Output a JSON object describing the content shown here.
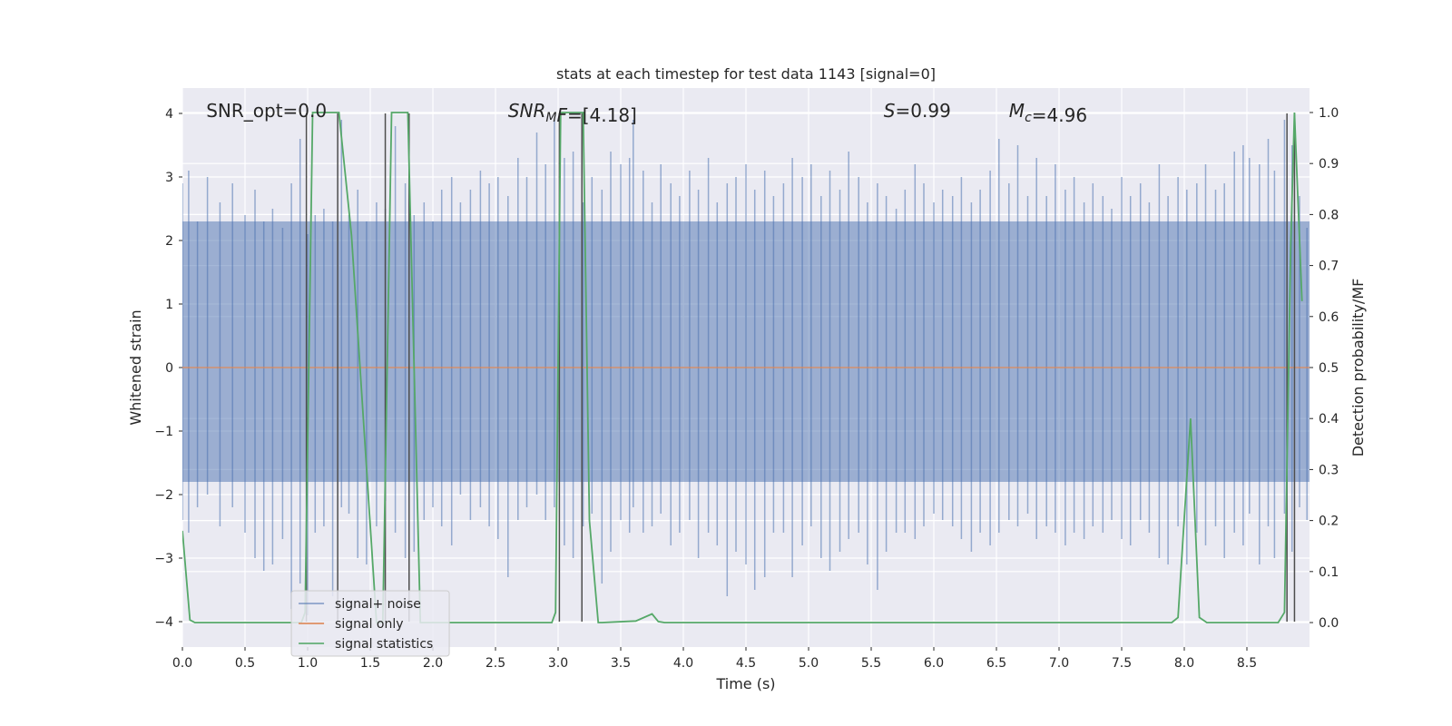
{
  "chart_data": {
    "type": "line",
    "title": "stats at each timestep for test data 1143 [signal=0]",
    "xlabel": "Time (s)",
    "ylabel": "Whitened strain",
    "y2label": "Detection probability/MF",
    "xlim": [
      0,
      9
    ],
    "ylim": [
      -4.4,
      4.4
    ],
    "y2lim": [
      -0.048,
      1.048
    ],
    "x_ticks": [
      0.0,
      0.5,
      1.0,
      1.5,
      2.0,
      2.5,
      3.0,
      3.5,
      4.0,
      4.5,
      5.0,
      5.5,
      6.0,
      6.5,
      7.0,
      7.5,
      8.0,
      8.5
    ],
    "x_tick_labels": [
      "0.0",
      "0.5",
      "1.0",
      "1.5",
      "2.0",
      "2.5",
      "3.0",
      "3.5",
      "4.0",
      "4.5",
      "5.0",
      "5.5",
      "6.0",
      "6.5",
      "7.0",
      "7.5",
      "8.0",
      "8.5"
    ],
    "y_ticks": [
      -4,
      -3,
      -2,
      -1,
      0,
      1,
      2,
      3,
      4
    ],
    "y_tick_labels": [
      "−4",
      "−3",
      "−2",
      "−1",
      "0",
      "1",
      "2",
      "3",
      "4"
    ],
    "y2_ticks": [
      0.0,
      0.1,
      0.2,
      0.3,
      0.4,
      0.5,
      0.6,
      0.7,
      0.8,
      0.9,
      1.0
    ],
    "y2_tick_labels": [
      "0.0",
      "0.1",
      "0.2",
      "0.3",
      "0.4",
      "0.5",
      "0.6",
      "0.7",
      "0.8",
      "0.9",
      "1.0"
    ],
    "grid": true,
    "legend_position": "lower-left",
    "annotations": [
      {
        "parts": [
          {
            "text": "SNR_opt=0.0"
          }
        ],
        "x": 0.19,
        "y": 4.0
      },
      {
        "parts": [
          {
            "text": "SNR",
            "italic": true
          },
          {
            "text": "M",
            "italic": true,
            "sub": true
          },
          {
            "text": "F",
            "italic": true
          },
          {
            "text": "=[4.18]"
          }
        ],
        "x": 2.6,
        "y": 4.0
      },
      {
        "parts": [
          {
            "text": "S",
            "italic": true
          },
          {
            "text": "=0.99"
          }
        ],
        "x": 5.6,
        "y": 4.0
      },
      {
        "parts": [
          {
            "text": "M",
            "italic": true
          },
          {
            "text": "c",
            "italic": true,
            "sub": true
          },
          {
            "text": "=4.96"
          }
        ],
        "x": 6.6,
        "y": 4.0
      }
    ],
    "series": [
      {
        "name": "signal+ noise",
        "color": "#4c72b0",
        "axis": "left",
        "style": "noise-band",
        "approx_band": [
          -1.8,
          2.3
        ],
        "peak_samples": [
          [
            0.0,
            2.9,
            -2.4
          ],
          [
            0.05,
            3.1,
            -2.6
          ],
          [
            0.12,
            2.3,
            -2.2
          ],
          [
            0.2,
            3.0,
            -2.0
          ],
          [
            0.3,
            2.6,
            -2.5
          ],
          [
            0.4,
            2.9,
            -2.2
          ],
          [
            0.5,
            2.4,
            -2.6
          ],
          [
            0.58,
            2.8,
            -3.0
          ],
          [
            0.65,
            2.3,
            -3.2
          ],
          [
            0.72,
            2.5,
            -3.1
          ],
          [
            0.8,
            2.2,
            -2.7
          ],
          [
            0.87,
            2.9,
            -3.8
          ],
          [
            0.94,
            3.6,
            -3.4
          ],
          [
            1.0,
            2.1,
            -3.9
          ],
          [
            1.06,
            2.4,
            -2.6
          ],
          [
            1.13,
            2.5,
            -2.5
          ],
          [
            1.2,
            2.3,
            -3.6
          ],
          [
            1.27,
            3.9,
            -2.2
          ],
          [
            1.33,
            2.4,
            -2.3
          ],
          [
            1.4,
            2.8,
            -3.0
          ],
          [
            1.47,
            2.3,
            -3.1
          ],
          [
            1.55,
            2.6,
            -2.5
          ],
          [
            1.62,
            2.5,
            -2.1
          ],
          [
            1.7,
            3.8,
            -2.6
          ],
          [
            1.78,
            2.9,
            -3.0
          ],
          [
            1.85,
            2.4,
            -2.9
          ],
          [
            1.93,
            2.6,
            -2.4
          ],
          [
            2.0,
            2.3,
            -2.2
          ],
          [
            2.07,
            2.8,
            -2.5
          ],
          [
            2.15,
            3.0,
            -2.8
          ],
          [
            2.22,
            2.6,
            -2.0
          ],
          [
            2.3,
            2.8,
            -2.4
          ],
          [
            2.38,
            3.1,
            -2.2
          ],
          [
            2.45,
            2.9,
            -2.5
          ],
          [
            2.52,
            3.0,
            -2.7
          ],
          [
            2.6,
            2.7,
            -3.3
          ],
          [
            2.68,
            3.3,
            -2.4
          ],
          [
            2.75,
            3.0,
            -2.2
          ],
          [
            2.83,
            3.7,
            -2.0
          ],
          [
            2.9,
            3.2,
            -2.4
          ],
          [
            2.97,
            3.9,
            -2.2
          ],
          [
            3.05,
            3.3,
            -2.8
          ],
          [
            3.12,
            3.4,
            -3.0
          ],
          [
            3.2,
            2.6,
            -2.5
          ],
          [
            3.27,
            3.0,
            -2.3
          ],
          [
            3.35,
            2.8,
            -3.4
          ],
          [
            3.42,
            3.4,
            -2.9
          ],
          [
            3.5,
            3.2,
            -2.4
          ],
          [
            3.57,
            3.3,
            -2.6
          ],
          [
            3.6,
            3.9,
            -2.2
          ],
          [
            3.68,
            3.1,
            -2.6
          ],
          [
            3.75,
            2.6,
            -2.5
          ],
          [
            3.82,
            3.2,
            -2.3
          ],
          [
            3.9,
            2.9,
            -2.8
          ],
          [
            3.97,
            2.7,
            -2.6
          ],
          [
            4.05,
            3.1,
            -2.4
          ],
          [
            4.12,
            2.8,
            -3.0
          ],
          [
            4.2,
            3.3,
            -2.6
          ],
          [
            4.27,
            2.6,
            -2.8
          ],
          [
            4.35,
            2.9,
            -3.6
          ],
          [
            4.42,
            3.0,
            -2.9
          ],
          [
            4.5,
            3.2,
            -3.1
          ],
          [
            4.57,
            2.8,
            -3.5
          ],
          [
            4.65,
            3.1,
            -3.3
          ],
          [
            4.72,
            2.7,
            -2.6
          ],
          [
            4.8,
            2.9,
            -2.6
          ],
          [
            4.87,
            3.3,
            -3.3
          ],
          [
            4.95,
            3.0,
            -2.8
          ],
          [
            5.02,
            3.2,
            -2.5
          ],
          [
            5.1,
            2.7,
            -3.0
          ],
          [
            5.17,
            3.1,
            -3.2
          ],
          [
            5.25,
            2.8,
            -2.9
          ],
          [
            5.32,
            3.4,
            -2.7
          ],
          [
            5.4,
            3.0,
            -2.6
          ],
          [
            5.47,
            2.6,
            -3.1
          ],
          [
            5.55,
            2.9,
            -3.5
          ],
          [
            5.62,
            2.7,
            -2.9
          ],
          [
            5.7,
            2.5,
            -2.6
          ],
          [
            5.77,
            2.8,
            -2.6
          ],
          [
            5.85,
            3.2,
            -2.7
          ],
          [
            5.92,
            2.9,
            -2.5
          ],
          [
            6.0,
            2.6,
            -2.3
          ],
          [
            6.07,
            2.8,
            -2.4
          ],
          [
            6.15,
            2.7,
            -2.5
          ],
          [
            6.22,
            3.0,
            -2.7
          ],
          [
            6.3,
            2.6,
            -2.9
          ],
          [
            6.37,
            2.8,
            -2.6
          ],
          [
            6.45,
            3.1,
            -2.8
          ],
          [
            6.52,
            3.6,
            -2.6
          ],
          [
            6.6,
            2.9,
            -2.4
          ],
          [
            6.67,
            3.5,
            -2.5
          ],
          [
            6.75,
            2.7,
            -2.3
          ],
          [
            6.82,
            3.3,
            -2.7
          ],
          [
            6.9,
            2.7,
            -2.5
          ],
          [
            6.97,
            3.2,
            -2.6
          ],
          [
            7.05,
            2.8,
            -2.8
          ],
          [
            7.12,
            3.0,
            -2.6
          ],
          [
            7.2,
            2.6,
            -2.7
          ],
          [
            7.27,
            2.9,
            -2.5
          ],
          [
            7.35,
            2.7,
            -2.6
          ],
          [
            7.42,
            2.5,
            -2.4
          ],
          [
            7.5,
            3.0,
            -2.7
          ],
          [
            7.57,
            2.7,
            -2.8
          ],
          [
            7.65,
            2.9,
            -2.4
          ],
          [
            7.72,
            2.6,
            -2.6
          ],
          [
            7.8,
            3.2,
            -3.0
          ],
          [
            7.87,
            2.7,
            -3.1
          ],
          [
            7.95,
            3.0,
            -2.5
          ],
          [
            8.02,
            2.8,
            -3.1
          ],
          [
            8.1,
            2.9,
            -2.6
          ],
          [
            8.17,
            3.2,
            -2.8
          ],
          [
            8.25,
            2.8,
            -2.5
          ],
          [
            8.32,
            2.9,
            -3.0
          ],
          [
            8.4,
            3.4,
            -2.6
          ],
          [
            8.47,
            3.5,
            -2.8
          ],
          [
            8.52,
            3.3,
            -2.3
          ],
          [
            8.6,
            3.2,
            -3.1
          ],
          [
            8.67,
            3.6,
            -2.5
          ],
          [
            8.72,
            3.1,
            -3.0
          ],
          [
            8.8,
            3.9,
            -2.3
          ],
          [
            8.86,
            3.5,
            -2.9
          ],
          [
            8.92,
            2.7,
            -2.2
          ],
          [
            8.98,
            2.2,
            -2.4
          ]
        ]
      },
      {
        "name": "signal only",
        "color": "#dd8452",
        "axis": "left",
        "x": [
          0,
          9
        ],
        "y": [
          0,
          0
        ]
      },
      {
        "name": "signal statistics",
        "color": "#55a868",
        "axis": "right",
        "x": [
          0.0,
          0.06,
          0.1,
          0.15,
          0.95,
          0.98,
          1.04,
          1.06,
          1.25,
          1.35,
          1.55,
          1.6,
          1.67,
          1.68,
          1.8,
          1.9,
          2.0,
          2.95,
          2.98,
          3.02,
          3.05,
          3.2,
          3.25,
          3.32,
          3.35,
          3.62,
          3.75,
          3.8,
          3.85,
          7.9,
          7.95,
          8.05,
          8.12,
          8.18,
          8.75,
          8.8,
          8.85,
          8.88,
          8.94
        ],
        "y": [
          0.18,
          0.005,
          0.0,
          0.0,
          0.0,
          0.02,
          1.0,
          1.0,
          1.0,
          0.76,
          0.0,
          0.0,
          1.0,
          1.0,
          1.0,
          0.0,
          0.0,
          0.0,
          0.02,
          1.0,
          1.0,
          1.0,
          0.2,
          0.0,
          0.0,
          0.003,
          0.017,
          0.002,
          0.0,
          0.0,
          0.01,
          0.4,
          0.01,
          0.0,
          0.0,
          0.02,
          0.74,
          1.0,
          0.63
        ]
      }
    ],
    "markers": {
      "color": "#4d4d4d",
      "x": [
        0.99,
        1.24,
        1.62,
        1.81,
        3.01,
        3.19,
        8.82,
        8.88
      ],
      "y_from": -4.0,
      "y_to": 4.0
    }
  }
}
